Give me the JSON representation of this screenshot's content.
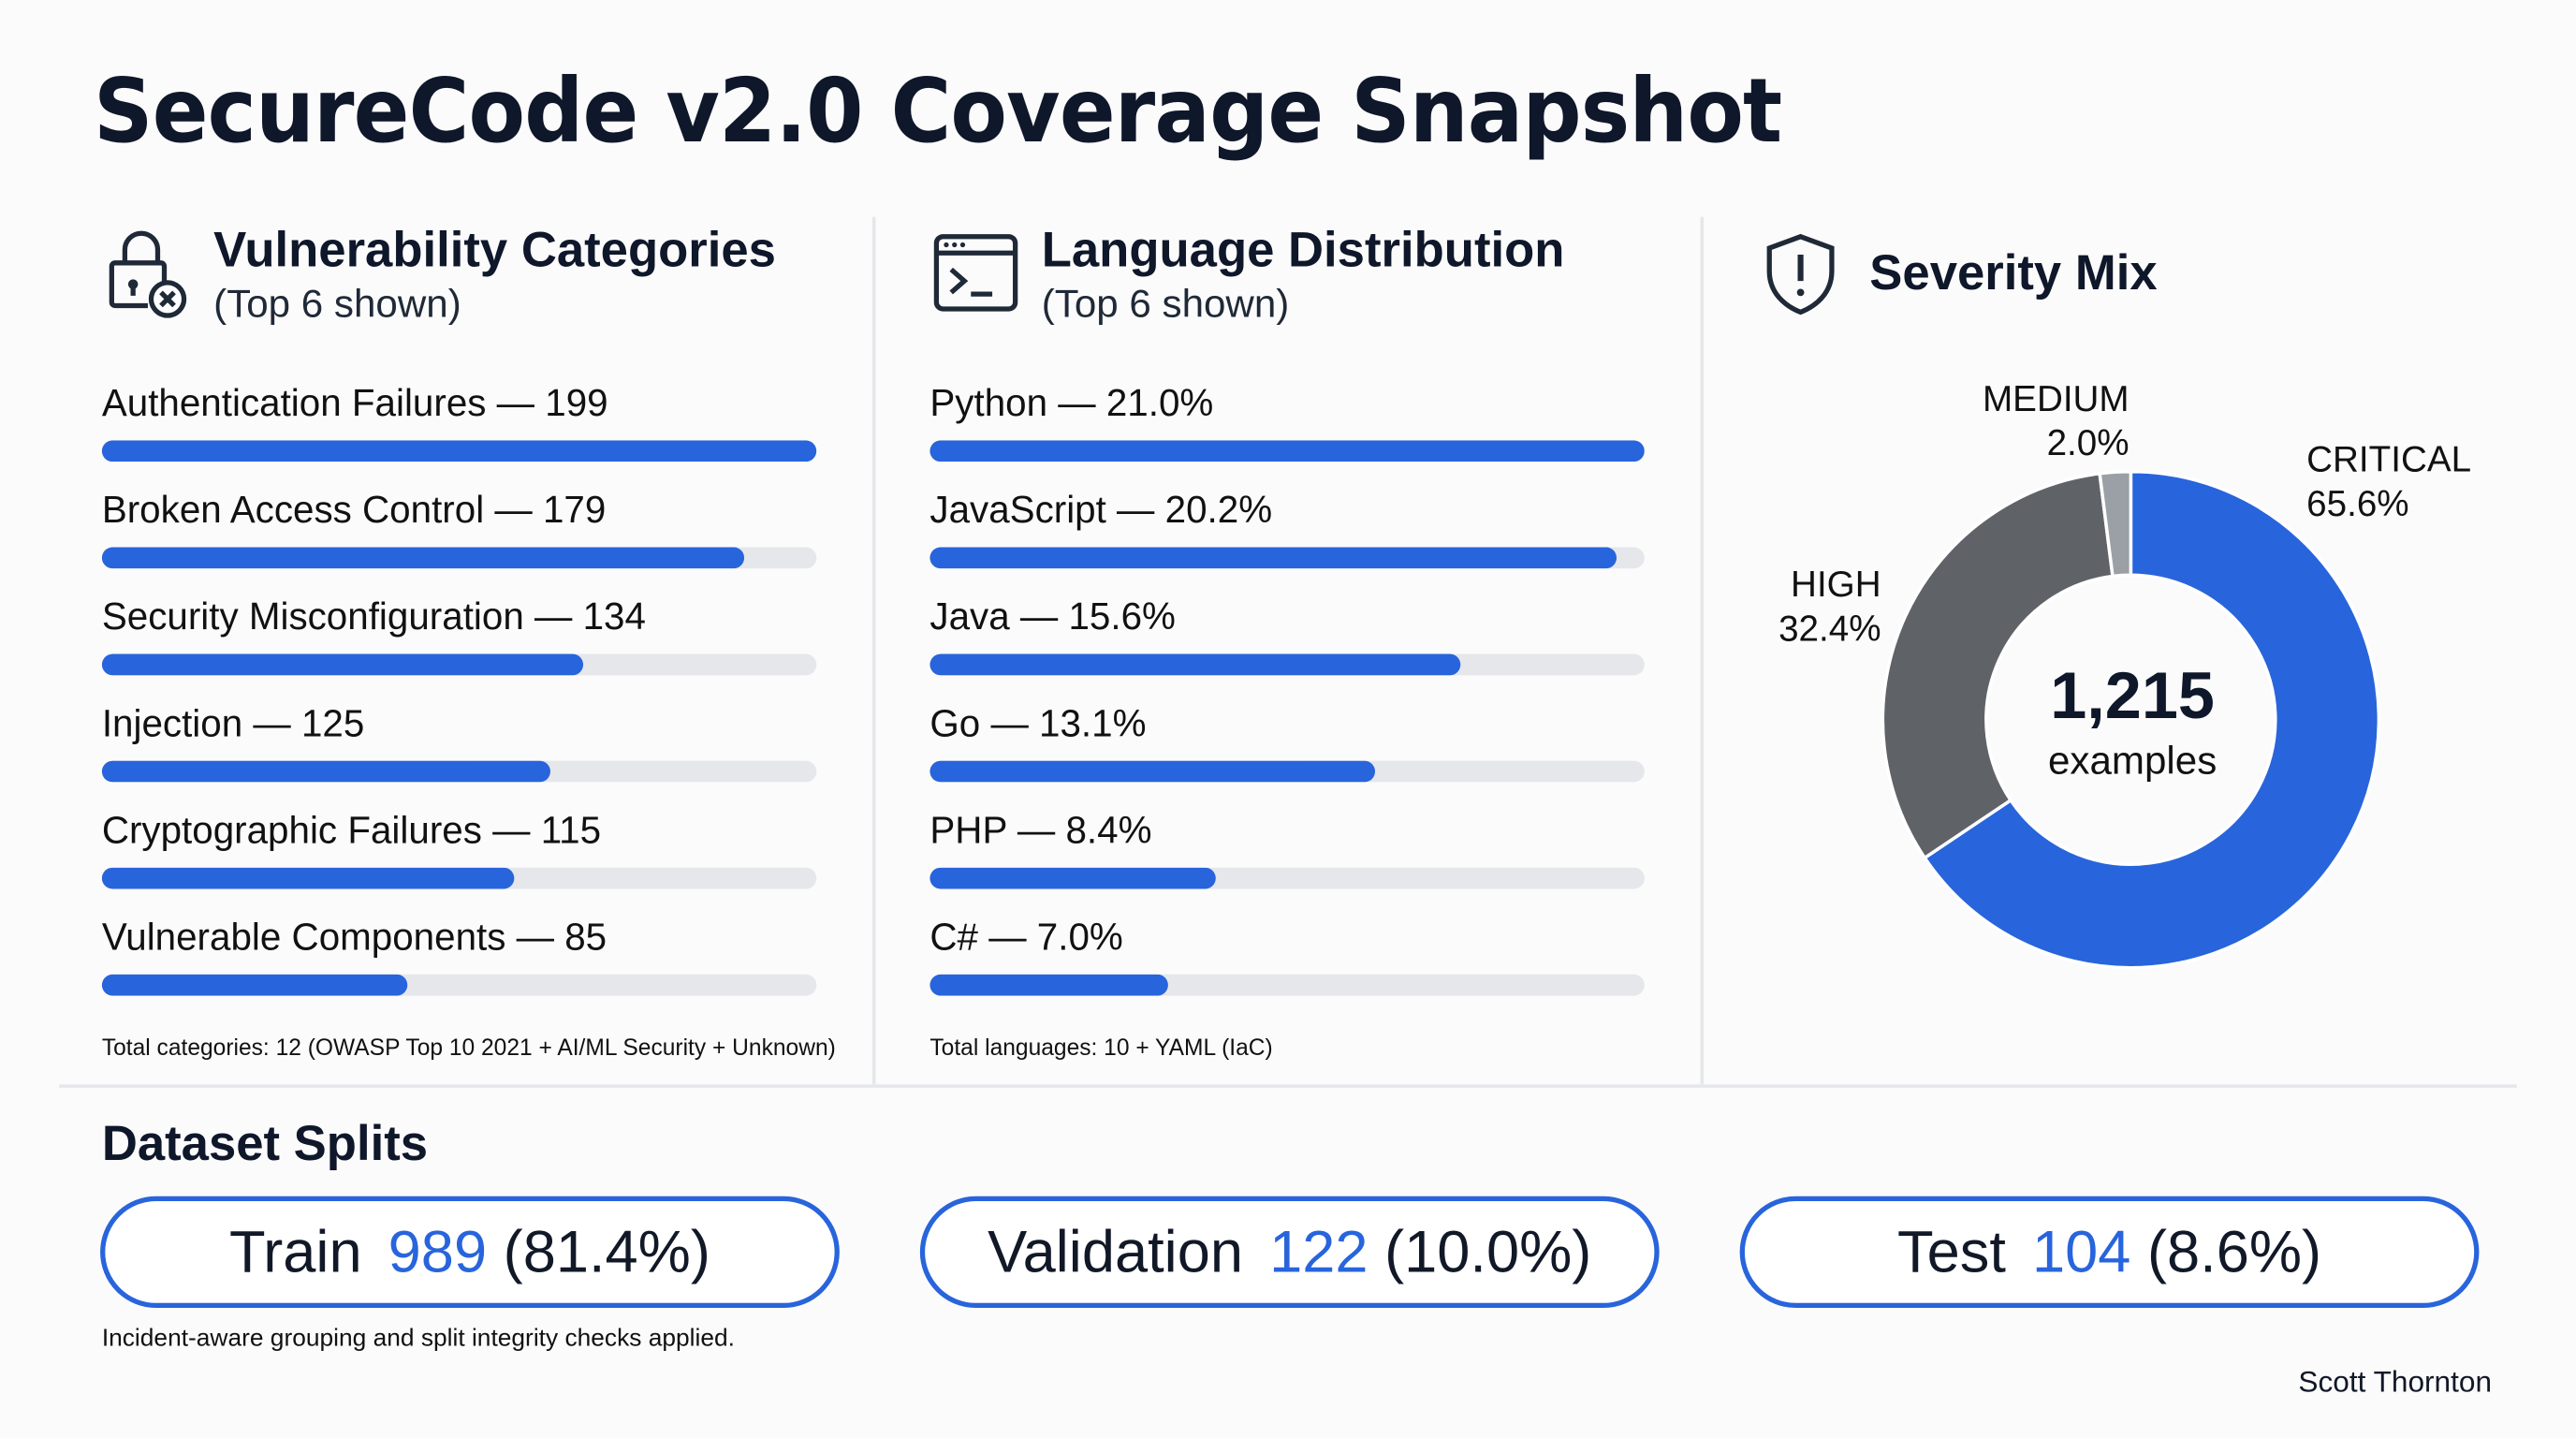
{
  "title": "SecureCode v2.0 Coverage Snapshot",
  "colors": {
    "accent": "#2864dc",
    "track": "#e6e7eb",
    "high": "#5f6368",
    "medium": "#9aa0a6"
  },
  "vulnerability": {
    "icon": "lock-x-icon",
    "heading": "Vulnerability Categories",
    "subheading": "(Top 6 shown)",
    "items": [
      {
        "label": "Authentication Failures — 199",
        "value": 199
      },
      {
        "label": "Broken Access Control — 179",
        "value": 179
      },
      {
        "label": "Security Misconfiguration — 134",
        "value": 134
      },
      {
        "label": "Injection — 125",
        "value": 125
      },
      {
        "label": "Cryptographic Failures — 115",
        "value": 115
      },
      {
        "label": "Vulnerable Components — 85",
        "value": 85
      }
    ],
    "note": "Total categories: 12 (OWASP Top 10 2021 + AI/ML Security + Unknown)"
  },
  "language": {
    "icon": "terminal-icon",
    "heading": "Language Distribution",
    "subheading": "(Top 6 shown)",
    "items": [
      {
        "label": "Python — 21.0%",
        "value": 21.0
      },
      {
        "label": "JavaScript — 20.2%",
        "value": 20.2
      },
      {
        "label": "Java — 15.6%",
        "value": 15.6
      },
      {
        "label": "Go — 13.1%",
        "value": 13.1
      },
      {
        "label": "PHP — 8.4%",
        "value": 8.4
      },
      {
        "label": "C# — 7.0%",
        "value": 7.0
      }
    ],
    "note": "Total languages: 10 + YAML (IaC)"
  },
  "severity": {
    "icon": "shield-alert-icon",
    "heading": "Severity Mix",
    "center_value": "1,215",
    "center_label": "examples"
  },
  "chart_data": {
    "type": "pie",
    "variant": "donut",
    "title": "Severity Mix",
    "slices": [
      {
        "name": "CRITICAL",
        "value": 65.6,
        "label": "65.6%",
        "color": "#2864dc"
      },
      {
        "name": "HIGH",
        "value": 32.4,
        "label": "32.4%",
        "color": "#5f6368"
      },
      {
        "name": "MEDIUM",
        "value": 2.0,
        "label": "2.0%",
        "color": "#9aa0a6"
      }
    ]
  },
  "splits": {
    "heading": "Dataset Splits",
    "items": [
      {
        "name": "Train",
        "count": "989",
        "pct": "(81.4%)"
      },
      {
        "name": "Validation",
        "count": "122",
        "pct": "(10.0%)"
      },
      {
        "name": "Test",
        "count": "104",
        "pct": "(8.6%)"
      }
    ],
    "note": "Incident-aware grouping and split integrity checks applied."
  },
  "author": "Scott Thornton"
}
